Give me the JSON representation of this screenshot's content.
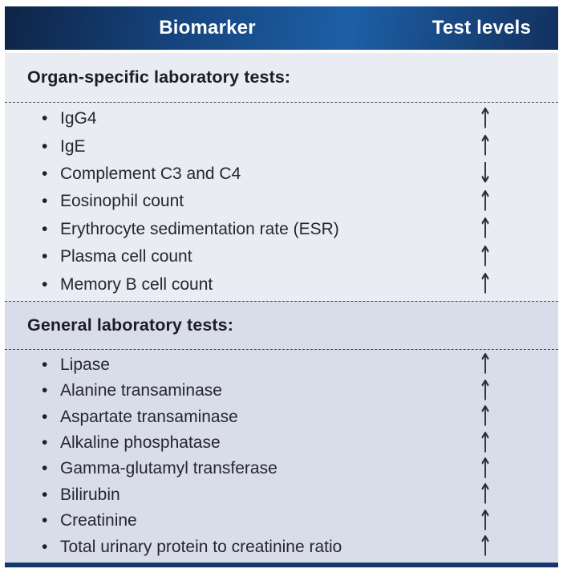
{
  "header": {
    "biomarker": "Biomarker",
    "test_levels": "Test levels"
  },
  "sections": [
    {
      "title": "Organ-specific laboratory tests:",
      "rows": [
        {
          "label": "IgG4",
          "arrow": "↑"
        },
        {
          "label": "IgE",
          "arrow": "↑"
        },
        {
          "label": "Complement C3 and C4",
          "arrow": "↓"
        },
        {
          "label": "Eosinophil count",
          "arrow": "↑"
        },
        {
          "label": "Erythrocyte sedimentation rate (ESR)",
          "arrow": "↑"
        },
        {
          "label": "Plasma cell count",
          "arrow": "↑"
        },
        {
          "label": "Memory B cell count",
          "arrow": "↑"
        }
      ]
    },
    {
      "title": "General laboratory tests:",
      "rows": [
        {
          "label": "Lipase",
          "arrow": "↑"
        },
        {
          "label": "Alanine transaminase",
          "arrow": "↑"
        },
        {
          "label": "Aspartate transaminase",
          "arrow": "↑"
        },
        {
          "label": "Alkaline phosphatase",
          "arrow": "↑"
        },
        {
          "label": "Gamma-glutamyl transferase",
          "arrow": "↑"
        },
        {
          "label": "Bilirubin",
          "arrow": "↑"
        },
        {
          "label": "Creatinine",
          "arrow": "↑"
        },
        {
          "label": "Total urinary protein to creatinine ratio",
          "arrow": "↑"
        }
      ]
    }
  ],
  "colors": {
    "header_gradient_dark": "#0e2446",
    "header_gradient_mid": "#15437c",
    "header_gradient_light": "#1d5fa6",
    "header_gradient_edge": "#12315e",
    "band_organ_specific": "#e9ecf2",
    "band_general": "#d9dde9",
    "dashed_divider": "#4c4c57",
    "bottom_rule": "#16376b"
  }
}
